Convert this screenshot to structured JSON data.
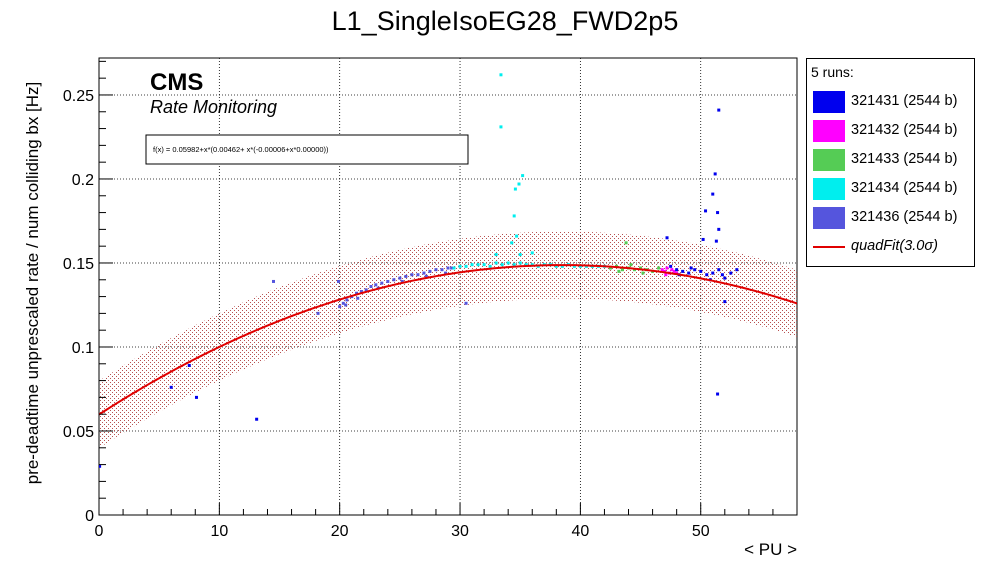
{
  "chart_data": {
    "type": "scatter",
    "title": "L1_SingleIsoEG28_FWD2p5",
    "xlabel": "< PU >",
    "ylabel": "pre-deadtime unprescaled rate / num colliding bx [Hz]",
    "xlim": [
      0,
      58
    ],
    "ylim": [
      0,
      0.272
    ],
    "x_ticks": [
      "0",
      "10",
      "20",
      "30",
      "40",
      "50"
    ],
    "y_ticks": [
      "0",
      "0.05",
      "0.1",
      "0.15",
      "0.2",
      "0.25"
    ],
    "grid": true,
    "legend_position": "outside-right",
    "annotations": {
      "cms_label": "CMS",
      "subtitle": "Rate Monitoring",
      "fit_formula": "f(x) = 0.05982+x*(0.00462+ x*(-0.00006+x*0.00000))"
    },
    "legend": {
      "header": "5 runs:",
      "entries": [
        {
          "label": "321431 (2544 b)",
          "color": "#0000ee"
        },
        {
          "label": "321432 (2544 b)",
          "color": "#ff00ff"
        },
        {
          "label": "321433 (2544 b)",
          "color": "#55cc55"
        },
        {
          "label": "321434 (2544 b)",
          "color": "#00eeee"
        },
        {
          "label": "321436 (2544 b)",
          "color": "#5555dd"
        }
      ],
      "fit_label": "quadFit(3.0σ)",
      "fit_color": "#e00000"
    },
    "fit": {
      "coefficients": [
        0.05982,
        0.00462,
        -6e-05,
        0.0
      ],
      "band_sigma": 0.02,
      "band_color": "#c06060"
    },
    "series": [
      {
        "name": "321436 (2544 b)",
        "color": "#5555dd",
        "points": [
          [
            20,
            0.124
          ],
          [
            20.3,
            0.126
          ],
          [
            20.6,
            0.128
          ],
          [
            21,
            0.13
          ],
          [
            21.4,
            0.132
          ],
          [
            21.8,
            0.133
          ],
          [
            22.2,
            0.134
          ],
          [
            22.6,
            0.136
          ],
          [
            23,
            0.137
          ],
          [
            23.5,
            0.138
          ],
          [
            24,
            0.139
          ],
          [
            24.5,
            0.14
          ],
          [
            25,
            0.141
          ],
          [
            25.5,
            0.142
          ],
          [
            26,
            0.143
          ],
          [
            26.5,
            0.143
          ],
          [
            27,
            0.144
          ],
          [
            27.5,
            0.145
          ],
          [
            28,
            0.146
          ],
          [
            28.5,
            0.146
          ],
          [
            29,
            0.147
          ],
          [
            29.3,
            0.147
          ],
          [
            20.5,
            0.125
          ],
          [
            21.5,
            0.129
          ],
          [
            23.2,
            0.135
          ],
          [
            25.2,
            0.139
          ],
          [
            27.2,
            0.142
          ],
          [
            28.8,
            0.144
          ],
          [
            30.5,
            0.126
          ],
          [
            18.2,
            0.12
          ],
          [
            14.5,
            0.139
          ],
          [
            19.9,
            0.139
          ]
        ]
      },
      {
        "name": "321434 (2544 b)",
        "color": "#00eeee",
        "points": [
          [
            29.5,
            0.147
          ],
          [
            30,
            0.148
          ],
          [
            30.5,
            0.148
          ],
          [
            31,
            0.149
          ],
          [
            31.5,
            0.149
          ],
          [
            32,
            0.149
          ],
          [
            32.5,
            0.148
          ],
          [
            33,
            0.15
          ],
          [
            33.5,
            0.149
          ],
          [
            34,
            0.15
          ],
          [
            34.5,
            0.149
          ],
          [
            35,
            0.15
          ],
          [
            35.5,
            0.149
          ],
          [
            36,
            0.149
          ],
          [
            36.5,
            0.148
          ],
          [
            37,
            0.149
          ],
          [
            37.5,
            0.149
          ],
          [
            38,
            0.148
          ],
          [
            38.5,
            0.148
          ],
          [
            39,
            0.149
          ],
          [
            39.5,
            0.148
          ],
          [
            40,
            0.148
          ],
          [
            40.5,
            0.148
          ],
          [
            41,
            0.148
          ],
          [
            41.5,
            0.148
          ],
          [
            42,
            0.148
          ],
          [
            33.4,
            0.262
          ],
          [
            33.4,
            0.231
          ],
          [
            35.2,
            0.202
          ],
          [
            34.9,
            0.197
          ],
          [
            34.6,
            0.194
          ],
          [
            34.5,
            0.178
          ],
          [
            34.7,
            0.166
          ],
          [
            34.3,
            0.162
          ],
          [
            35,
            0.155
          ],
          [
            36,
            0.156
          ],
          [
            33,
            0.155
          ]
        ]
      },
      {
        "name": "321433 (2544 b)",
        "color": "#55cc55",
        "points": [
          [
            42.5,
            0.147
          ],
          [
            43,
            0.148
          ],
          [
            43.5,
            0.146
          ],
          [
            44,
            0.147
          ],
          [
            44.5,
            0.146
          ],
          [
            45,
            0.147
          ],
          [
            45.5,
            0.146
          ],
          [
            46,
            0.145
          ],
          [
            46.5,
            0.147
          ],
          [
            43.2,
            0.145
          ],
          [
            44.2,
            0.149
          ],
          [
            45.2,
            0.144
          ],
          [
            43.8,
            0.162
          ]
        ]
      },
      {
        "name": "321432 (2544 b)",
        "color": "#ff00ff",
        "points": [
          [
            46.8,
            0.146
          ],
          [
            47,
            0.145
          ],
          [
            47.2,
            0.147
          ],
          [
            47.4,
            0.144
          ],
          [
            47.6,
            0.146
          ],
          [
            47.8,
            0.145
          ],
          [
            48,
            0.144
          ],
          [
            47.1,
            0.143
          ]
        ]
      },
      {
        "name": "321431 (2544 b)",
        "color": "#0000ee",
        "points": [
          [
            47.5,
            0.148
          ],
          [
            48,
            0.146
          ],
          [
            48.5,
            0.145
          ],
          [
            49,
            0.144
          ],
          [
            49.5,
            0.146
          ],
          [
            50,
            0.145
          ],
          [
            50.5,
            0.143
          ],
          [
            51,
            0.144
          ],
          [
            51.5,
            0.146
          ],
          [
            52,
            0.141
          ],
          [
            52.5,
            0.144
          ],
          [
            53,
            0.146
          ],
          [
            48.2,
            0.143
          ],
          [
            49.2,
            0.147
          ],
          [
            50.8,
            0.14
          ],
          [
            51.8,
            0.143
          ],
          [
            51.5,
            0.241
          ],
          [
            51.2,
            0.203
          ],
          [
            51,
            0.191
          ],
          [
            51.4,
            0.18
          ],
          [
            50.4,
            0.181
          ],
          [
            51.5,
            0.17
          ],
          [
            51.3,
            0.163
          ],
          [
            50.2,
            0.164
          ],
          [
            47.2,
            0.165
          ],
          [
            52,
            0.127
          ],
          [
            51.4,
            0.072
          ],
          [
            13.1,
            0.057
          ],
          [
            8.1,
            0.07
          ],
          [
            6,
            0.076
          ],
          [
            7.5,
            0.089
          ],
          [
            0.05,
            0.029
          ]
        ]
      }
    ]
  }
}
